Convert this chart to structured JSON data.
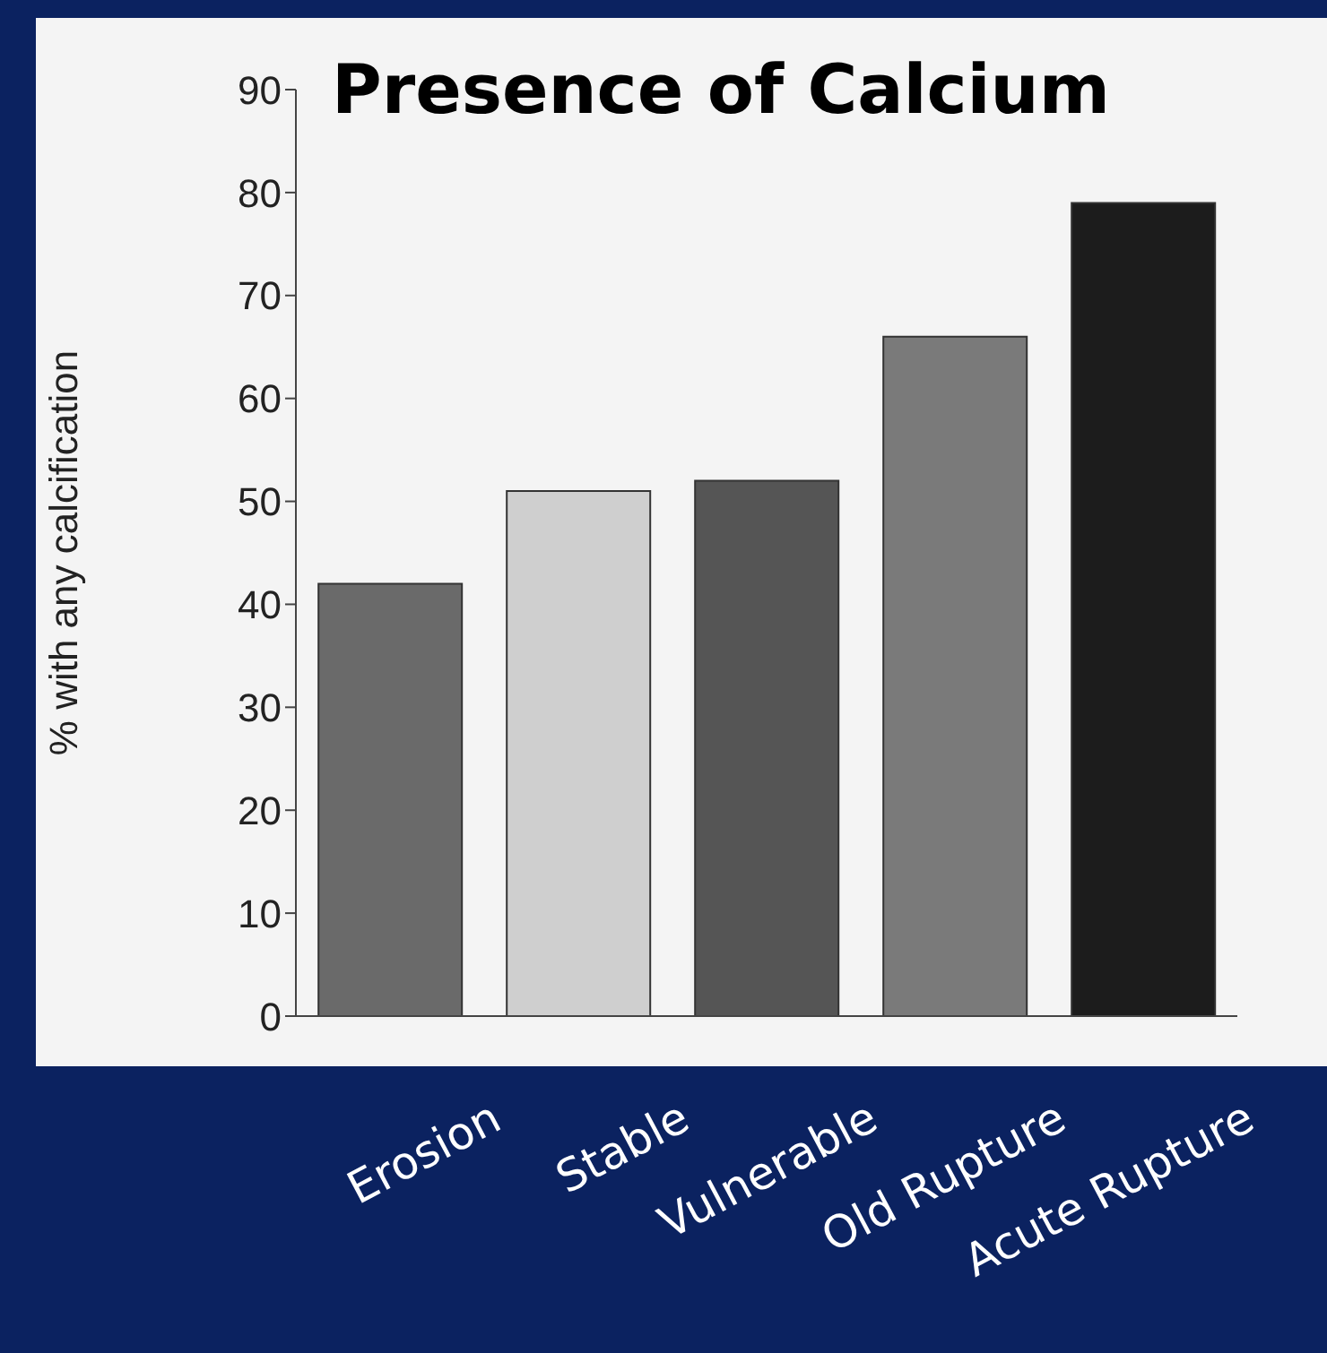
{
  "chart_data": {
    "type": "bar",
    "title": "Presence of Calcium",
    "ylabel": "% with any calcification",
    "categories": [
      "Erosion",
      "Stable",
      "Vulnerable",
      "Old Rupture",
      "Acute Rupture"
    ],
    "values": [
      42,
      51,
      52,
      66,
      79
    ],
    "colors": [
      "#6a6a6a",
      "#cfcfcf",
      "#555555",
      "#7a7a7a",
      "#1c1c1c"
    ],
    "ylim": [
      0,
      90
    ],
    "yticks": [
      0,
      10,
      20,
      30,
      40,
      50,
      60,
      70,
      80,
      90
    ],
    "grid": false,
    "legend": false
  }
}
